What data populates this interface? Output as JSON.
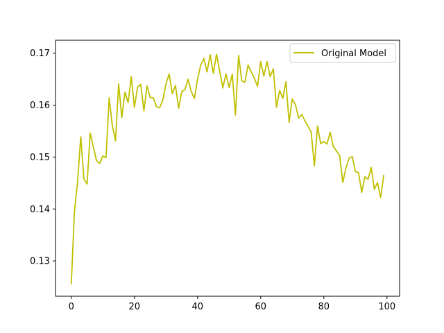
{
  "chart_data": {
    "type": "line",
    "title": "",
    "xlabel": "",
    "ylabel": "",
    "xlim": [
      -5,
      104
    ],
    "ylim": [
      0.1232,
      0.1725
    ],
    "xticks": [
      0,
      20,
      40,
      60,
      80,
      100
    ],
    "yticks": [
      0.13,
      0.14,
      0.15,
      0.16,
      0.17
    ],
    "xtick_labels": [
      "0",
      "20",
      "40",
      "60",
      "80",
      "100"
    ],
    "ytick_labels": [
      "0.13",
      "0.14",
      "0.15",
      "0.16",
      "0.17"
    ],
    "grid": false,
    "legend_position": "top-right",
    "series": [
      {
        "name": "Original Model",
        "color": "#bfbf00",
        "x": [
          0,
          1,
          2,
          3,
          4,
          5,
          6,
          7,
          8,
          9,
          10,
          11,
          12,
          13,
          14,
          15,
          16,
          17,
          18,
          19,
          20,
          21,
          22,
          23,
          24,
          25,
          26,
          27,
          28,
          29,
          30,
          31,
          32,
          33,
          34,
          35,
          36,
          37,
          38,
          39,
          40,
          41,
          42,
          43,
          44,
          45,
          46,
          47,
          48,
          49,
          50,
          51,
          52,
          53,
          54,
          55,
          56,
          57,
          58,
          59,
          60,
          61,
          62,
          63,
          64,
          65,
          66,
          67,
          68,
          69,
          70,
          71,
          72,
          73,
          74,
          75,
          76,
          77,
          78,
          79,
          80,
          81,
          82,
          83,
          84,
          85,
          86,
          87,
          88,
          89,
          90,
          91,
          92,
          93,
          94,
          95,
          96,
          97,
          98,
          99
        ],
        "values": [
          0.1255,
          0.1395,
          0.1453,
          0.1539,
          0.1458,
          0.1448,
          0.1546,
          0.1519,
          0.1493,
          0.1488,
          0.1502,
          0.1499,
          0.1614,
          0.1561,
          0.1531,
          0.1641,
          0.1576,
          0.1625,
          0.1605,
          0.1655,
          0.1596,
          0.1635,
          0.164,
          0.1589,
          0.1637,
          0.1615,
          0.1614,
          0.1597,
          0.1595,
          0.161,
          0.1641,
          0.166,
          0.1622,
          0.1638,
          0.1594,
          0.1626,
          0.163,
          0.165,
          0.1626,
          0.1613,
          0.165,
          0.1677,
          0.169,
          0.1664,
          0.1697,
          0.1661,
          0.1698,
          0.1666,
          0.1633,
          0.166,
          0.1634,
          0.166,
          0.1581,
          0.1696,
          0.1647,
          0.1644,
          0.1677,
          0.1664,
          0.1652,
          0.1636,
          0.1684,
          0.1656,
          0.1684,
          0.1655,
          0.167,
          0.1596,
          0.1628,
          0.1613,
          0.1645,
          0.1567,
          0.1612,
          0.1601,
          0.1575,
          0.1582,
          0.157,
          0.1559,
          0.1548,
          0.1483,
          0.156,
          0.1526,
          0.153,
          0.1525,
          0.1548,
          0.152,
          0.1512,
          0.1503,
          0.1451,
          0.1479,
          0.1498,
          0.1501,
          0.1472,
          0.147,
          0.1432,
          0.1462,
          0.1457,
          0.148,
          0.1438,
          0.1451,
          0.1422,
          0.1466
        ]
      }
    ]
  }
}
